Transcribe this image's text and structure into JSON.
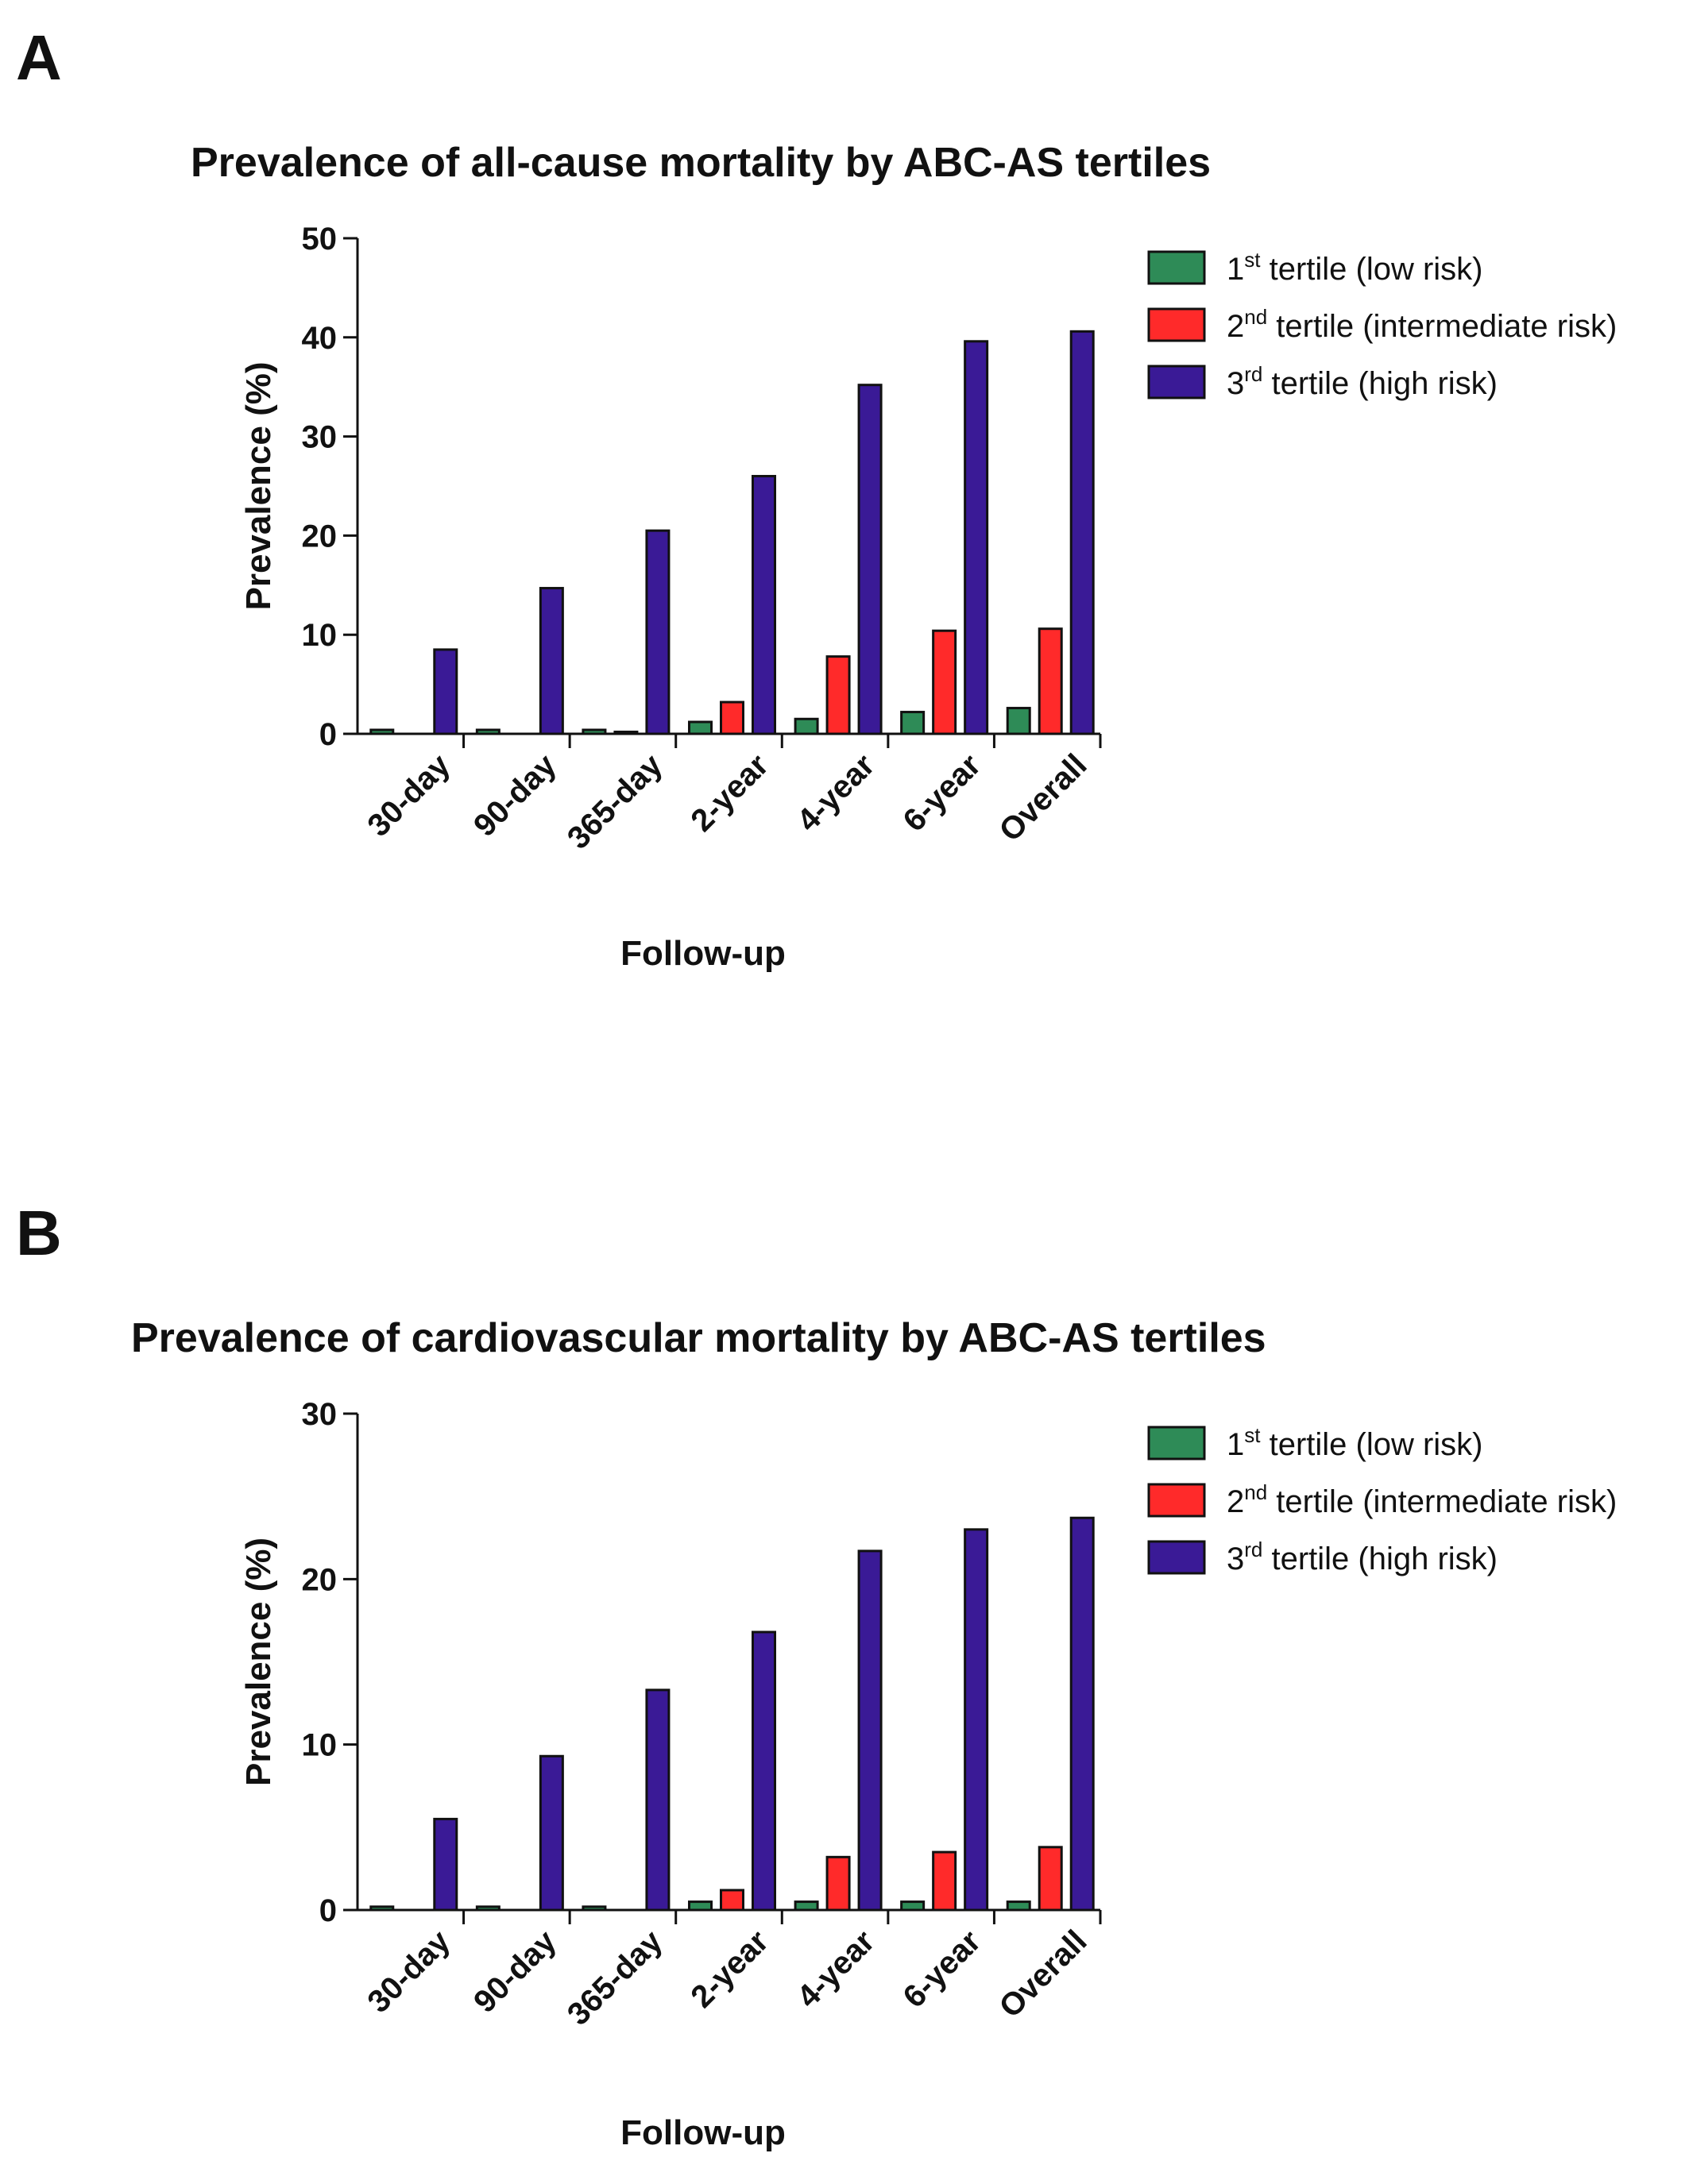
{
  "chart_data": [
    {
      "type": "bar",
      "panel": "A",
      "title": "Prevalence of all-cause mortality by ABC-AS tertiles",
      "xlabel": "Follow-up",
      "ylabel": "Prevalence (%)",
      "ylim": [
        0,
        50
      ],
      "yticks": [
        0,
        10,
        20,
        30,
        40,
        50
      ],
      "categories": [
        "30-day",
        "90-day",
        "365-day",
        "2-year",
        "4-year",
        "6-year",
        "Overall"
      ],
      "legend_position": "right",
      "series": [
        {
          "name": "1st tertile (low risk)",
          "ord": "1",
          "sup": "st",
          "rest": " tertile (low risk)",
          "color": "#2e8b57",
          "values": [
            0.4,
            0.4,
            0.4,
            1.2,
            1.5,
            2.2,
            2.6
          ]
        },
        {
          "name": "2nd tertile (intermediate risk)",
          "ord": "2",
          "sup": "nd",
          "rest": " tertile (intermediate risk)",
          "color": "#ff2a2a",
          "values": [
            0,
            0,
            0.2,
            3.2,
            7.8,
            10.4,
            10.6
          ]
        },
        {
          "name": "3rd tertile (high risk)",
          "ord": "3",
          "sup": "rd",
          "rest": " tertile (high risk)",
          "color": "#3a1a96",
          "values": [
            8.5,
            14.7,
            20.5,
            26.0,
            35.2,
            39.6,
            40.6
          ]
        }
      ]
    },
    {
      "type": "bar",
      "panel": "B",
      "title": "Prevalence of cardiovascular mortality by ABC-AS tertiles",
      "xlabel": "Follow-up",
      "ylabel": "Prevalence (%)",
      "ylim": [
        0,
        30
      ],
      "yticks": [
        0,
        10,
        20,
        30
      ],
      "categories": [
        "30-day",
        "90-day",
        "365-day",
        "2-year",
        "4-year",
        "6-year",
        "Overall"
      ],
      "legend_position": "right",
      "series": [
        {
          "name": "1st tertile (low risk)",
          "ord": "1",
          "sup": "st",
          "rest": " tertile (low risk)",
          "color": "#2e8b57",
          "values": [
            0.2,
            0.2,
            0.2,
            0.5,
            0.5,
            0.5,
            0.5
          ]
        },
        {
          "name": "2nd tertile (intermediate risk)",
          "ord": "2",
          "sup": "nd",
          "rest": " tertile (intermediate risk)",
          "color": "#ff2a2a",
          "values": [
            0,
            0,
            0,
            1.2,
            3.2,
            3.5,
            3.8
          ]
        },
        {
          "name": "3rd tertile (high risk)",
          "ord": "3",
          "sup": "rd",
          "rest": " tertile (high risk)",
          "color": "#3a1a96",
          "values": [
            5.5,
            9.3,
            13.3,
            16.8,
            21.7,
            23.0,
            23.7
          ]
        }
      ]
    }
  ]
}
